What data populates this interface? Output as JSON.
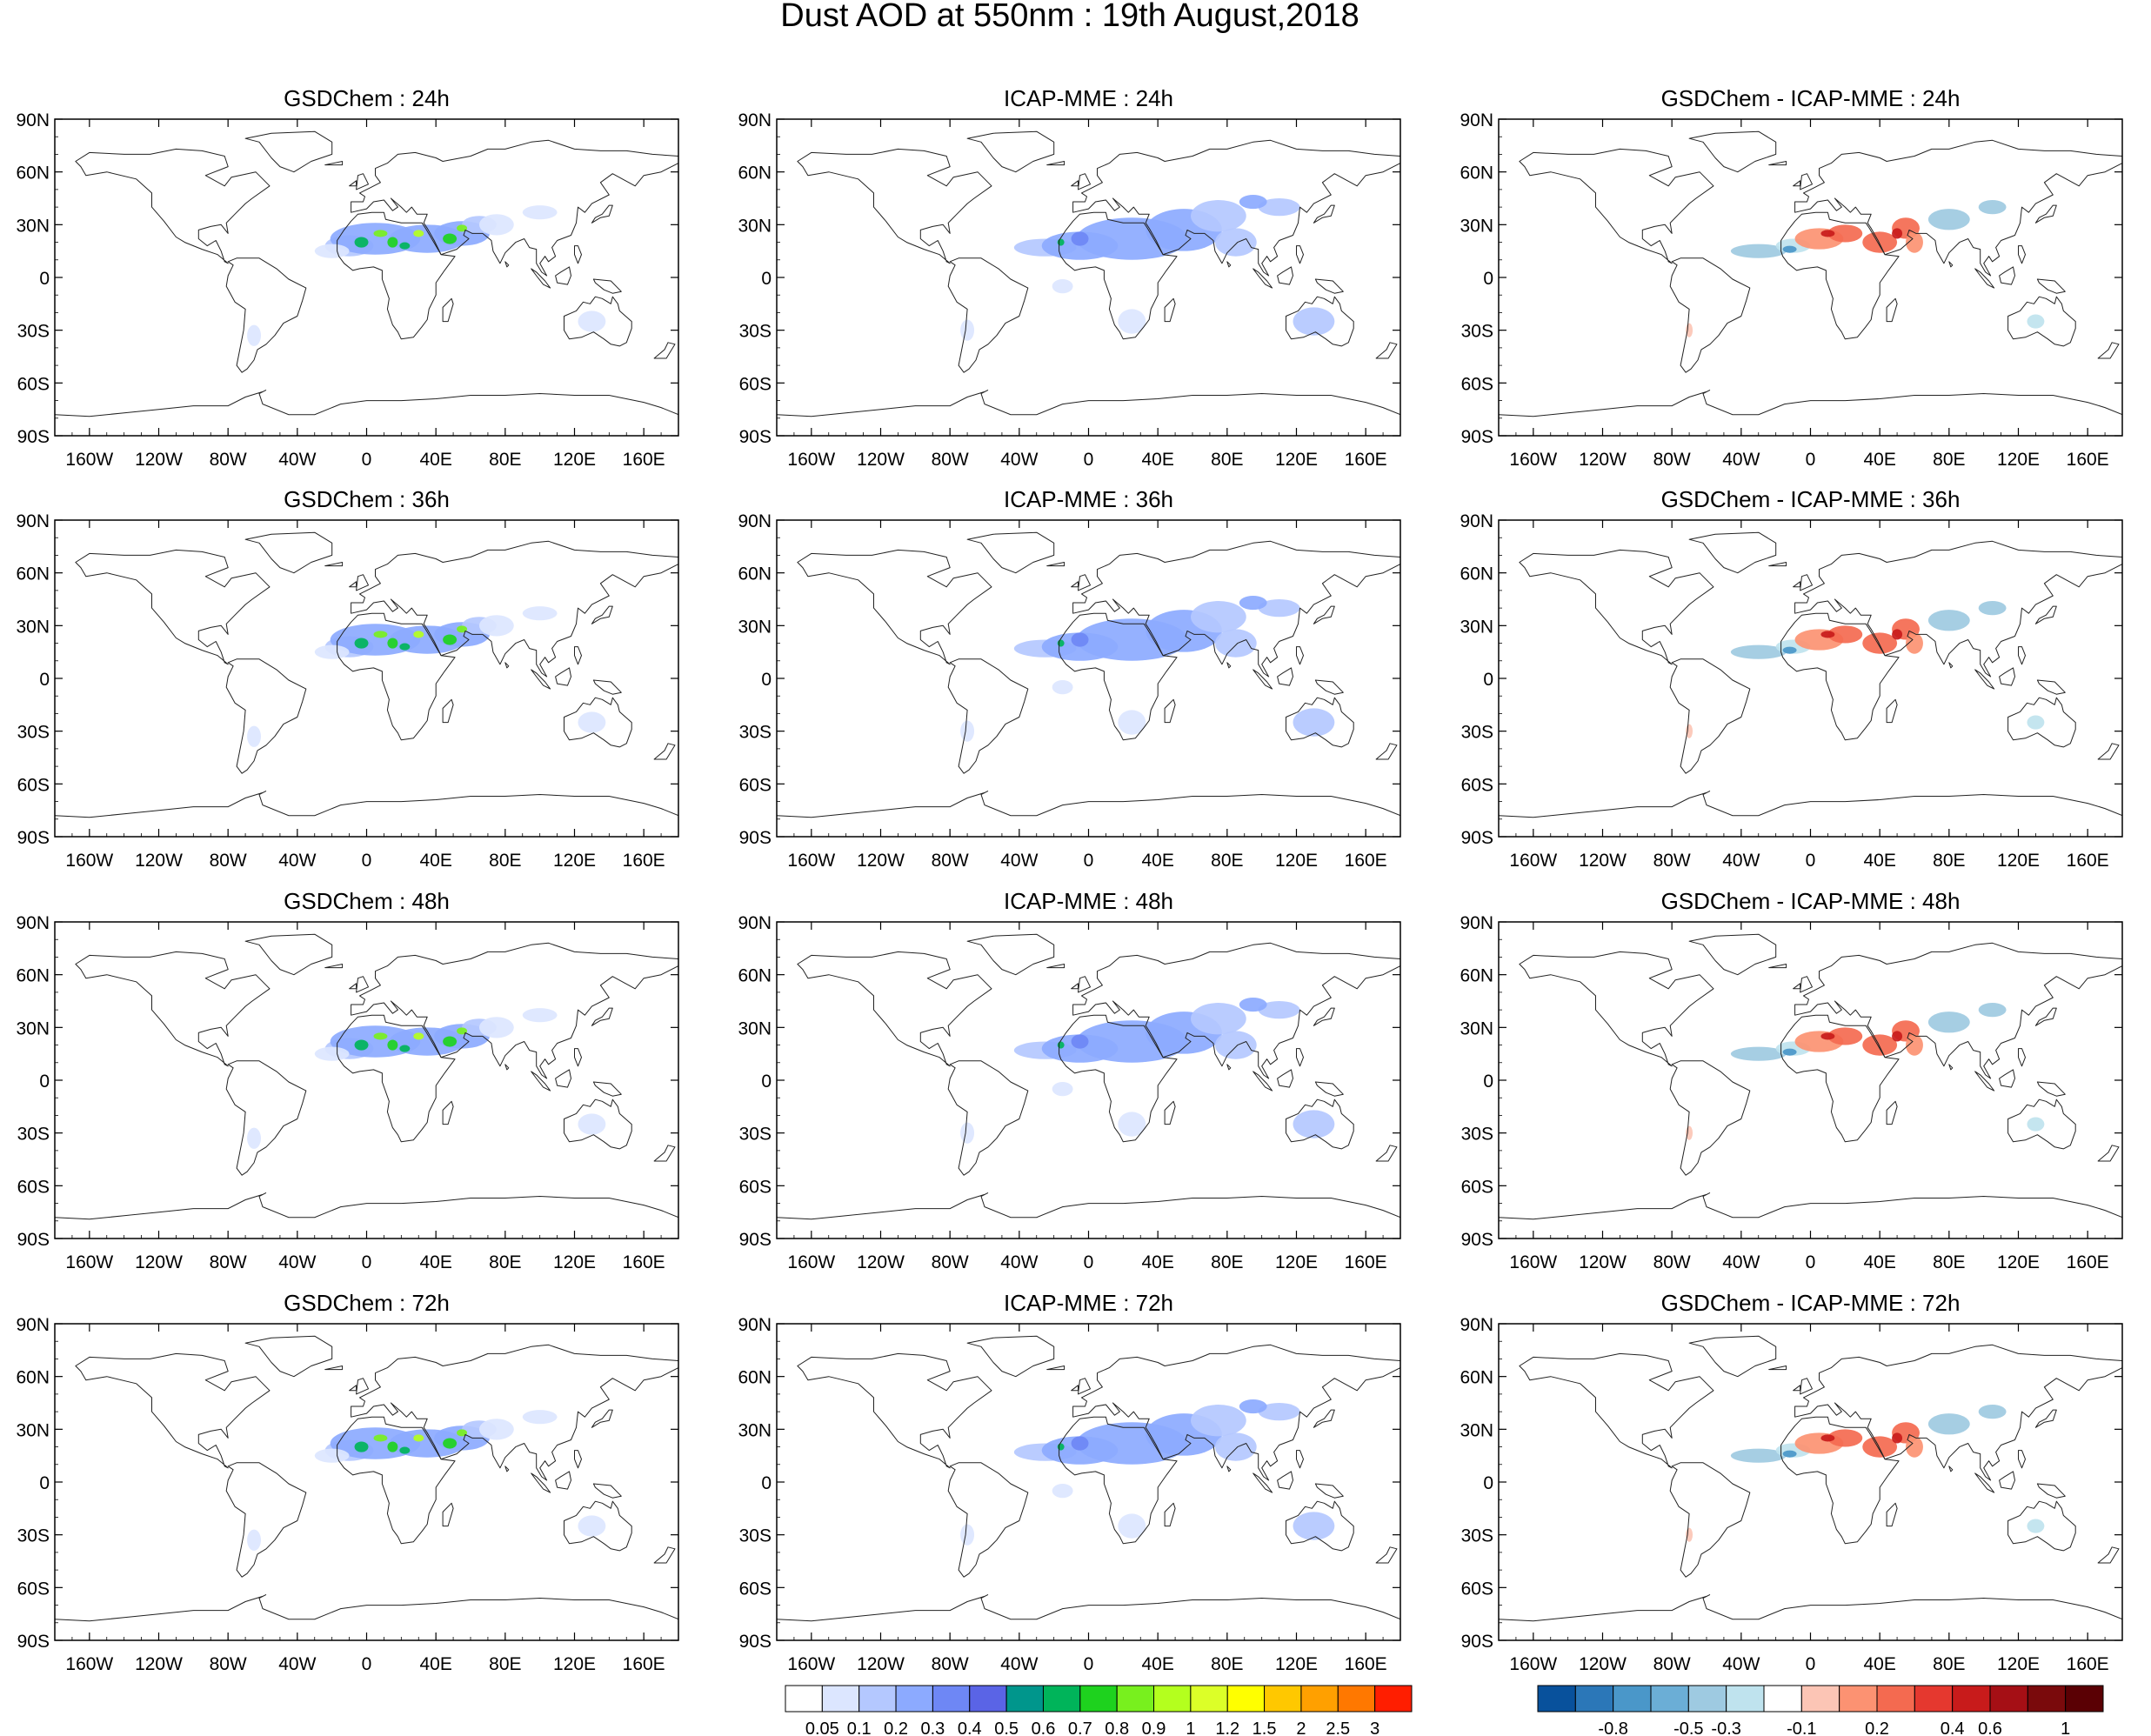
{
  "title": "Dust AOD at 550nm : 19th August,2018",
  "panels": [
    {
      "title": "GSDChem : 24h",
      "kind": "model"
    },
    {
      "title": "ICAP-MME : 24h",
      "kind": "icap"
    },
    {
      "title": "GSDChem - ICAP-MME : 24h",
      "kind": "diff"
    },
    {
      "title": "GSDChem : 36h",
      "kind": "model"
    },
    {
      "title": "ICAP-MME : 36h",
      "kind": "icap"
    },
    {
      "title": "GSDChem - ICAP-MME : 36h",
      "kind": "diff"
    },
    {
      "title": "GSDChem : 48h",
      "kind": "model"
    },
    {
      "title": "ICAP-MME : 48h",
      "kind": "icap"
    },
    {
      "title": "GSDChem - ICAP-MME : 48h",
      "kind": "diff"
    },
    {
      "title": "GSDChem : 72h",
      "kind": "model"
    },
    {
      "title": "ICAP-MME : 72h",
      "kind": "icap"
    },
    {
      "title": "GSDChem - ICAP-MME : 72h",
      "kind": "diff"
    }
  ],
  "lat_ticks": [
    "90N",
    "60N",
    "30N",
    "0",
    "30S",
    "60S",
    "90S"
  ],
  "lon_ticks": [
    "160W",
    "120W",
    "80W",
    "40W",
    "0",
    "40E",
    "80E",
    "120E",
    "160E"
  ],
  "colorbar_aod": {
    "labels": [
      "0.05",
      "0.1",
      "0.2",
      "0.3",
      "0.4",
      "0.5",
      "0.6",
      "0.7",
      "0.8",
      "0.9",
      "1",
      "1.2",
      "1.5",
      "2",
      "2.5",
      "3"
    ],
    "colors": [
      "#ffffff",
      "#dce6ff",
      "#b4c8ff",
      "#8caaff",
      "#6e87f5",
      "#5a64e6",
      "#00968c",
      "#00b45a",
      "#1ed21e",
      "#78f01e",
      "#b4ff1e",
      "#dcff28",
      "#ffff00",
      "#ffc800",
      "#ffa000",
      "#ff7800",
      "#ff1e00"
    ]
  },
  "colorbar_diff": {
    "labels": [
      "-0.8",
      "-0.5",
      "-0.3",
      "-0.1",
      "0.2",
      "0.4",
      "0.6",
      "1"
    ],
    "colors": [
      "#08519c",
      "#2b77b8",
      "#4a97c9",
      "#6baed6",
      "#9ecae1",
      "#bfe3ee",
      "#ffffff",
      "#fcc5b5",
      "#fc9272",
      "#f46a50",
      "#e5382f",
      "#c81b1b",
      "#a50f15",
      "#7a0a0c",
      "#5a0004"
    ]
  }
}
